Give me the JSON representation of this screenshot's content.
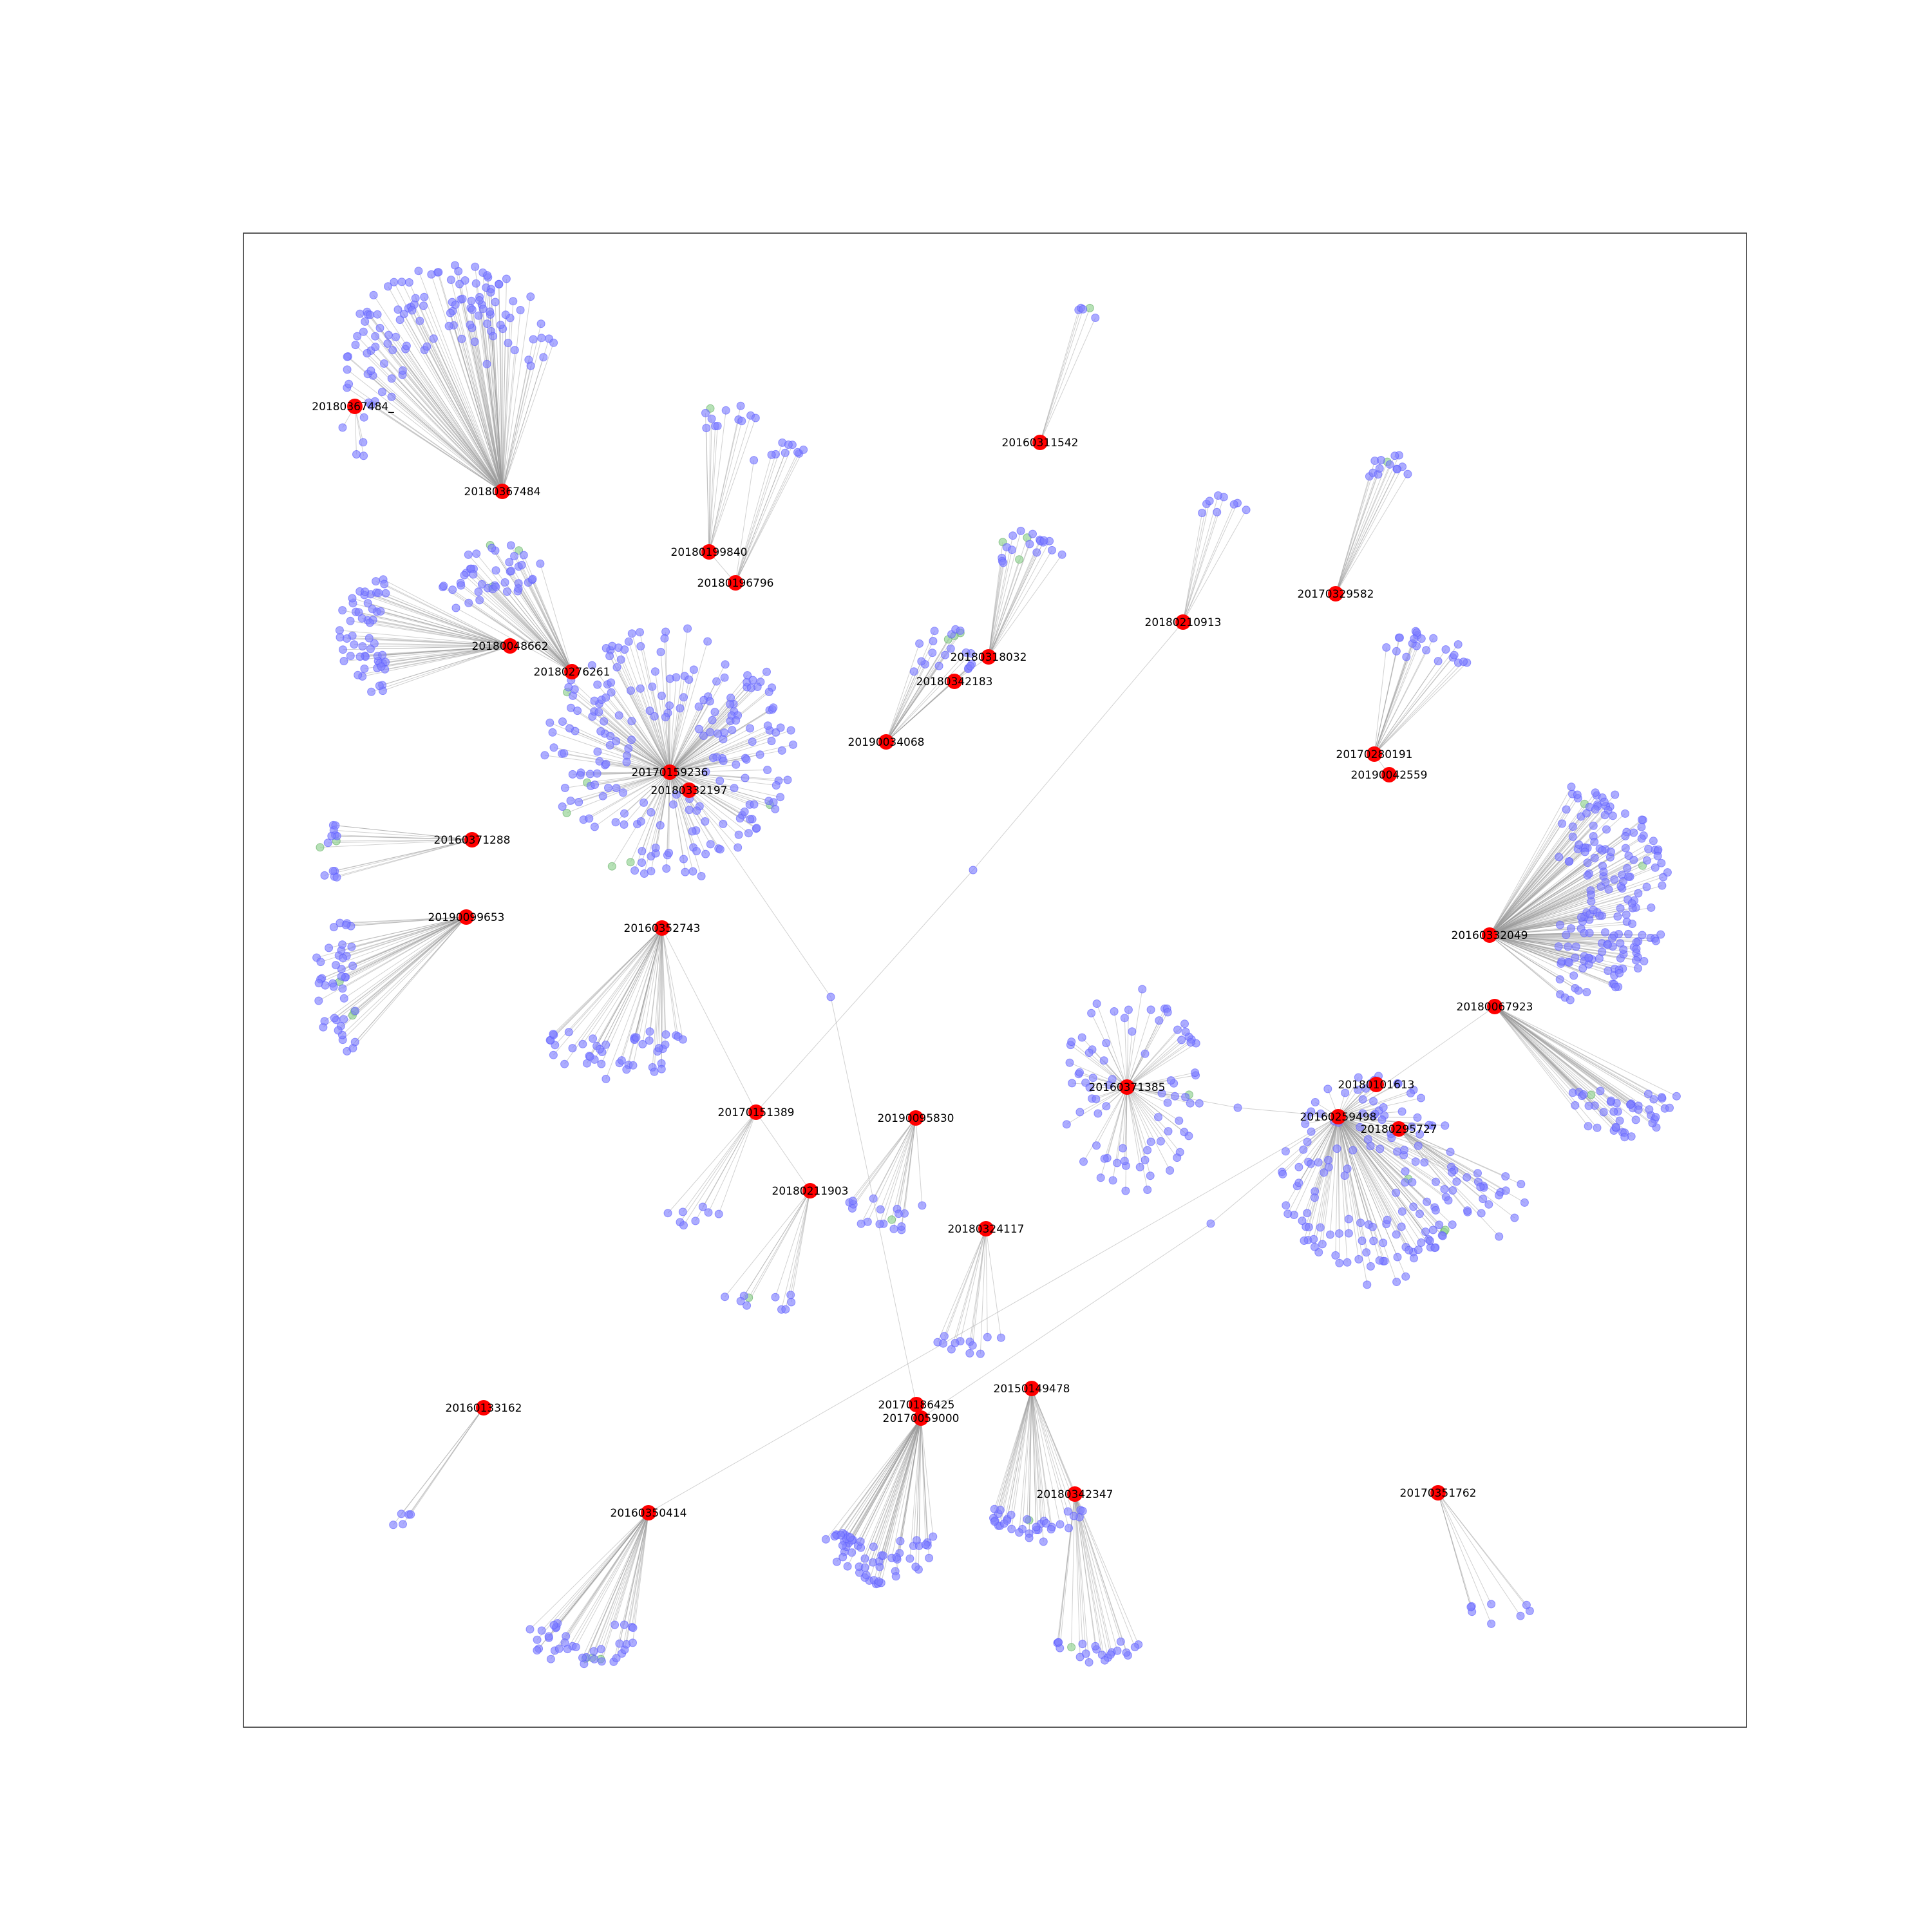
{
  "colors": {
    "hub": "#ff0000",
    "leaf": "#8080ff",
    "leaf_alt": "#8fd18f",
    "edge": "#9a9a9a",
    "frame": "#333333",
    "background": "#ffffff"
  },
  "hubs": [
    {
      "id": "h1",
      "label": "20180367484_"
    },
    {
      "id": "h2",
      "label": "20180367484"
    },
    {
      "id": "h3",
      "label": "20180199840"
    },
    {
      "id": "h4",
      "label": "20180196796"
    },
    {
      "id": "h5",
      "label": "20160311542"
    },
    {
      "id": "h6",
      "label": "20180048662"
    },
    {
      "id": "h7",
      "label": "20180276261"
    },
    {
      "id": "h8",
      "label": "20170159236"
    },
    {
      "id": "h9",
      "label": "20180332197"
    },
    {
      "id": "h10",
      "label": "20180318032"
    },
    {
      "id": "h11",
      "label": "20180342183"
    },
    {
      "id": "h12",
      "label": "20190034068"
    },
    {
      "id": "h13",
      "label": "20180210913"
    },
    {
      "id": "h14",
      "label": "20170329582"
    },
    {
      "id": "h15",
      "label": "20170280191"
    },
    {
      "id": "h16",
      "label": "20190042559"
    },
    {
      "id": "h17",
      "label": "20160371288"
    },
    {
      "id": "h18",
      "label": "20190099653"
    },
    {
      "id": "h19",
      "label": "20160352743"
    },
    {
      "id": "h20",
      "label": "20160332049"
    },
    {
      "id": "h21",
      "label": "20180067923"
    },
    {
      "id": "h22",
      "label": "20160371385"
    },
    {
      "id": "h23",
      "label": "20180101613"
    },
    {
      "id": "h24",
      "label": "20160259498"
    },
    {
      "id": "h25",
      "label": "20180295727"
    },
    {
      "id": "h26",
      "label": "20170151389"
    },
    {
      "id": "h27",
      "label": "20190095830"
    },
    {
      "id": "h28",
      "label": "20180211903"
    },
    {
      "id": "h29",
      "label": "20180324117"
    },
    {
      "id": "h30",
      "label": "20160133162"
    },
    {
      "id": "h31",
      "label": "20170186425"
    },
    {
      "id": "h32",
      "label": "20170059000"
    },
    {
      "id": "h33",
      "label": "20150149478"
    },
    {
      "id": "h34",
      "label": "20180342347"
    },
    {
      "id": "h35",
      "label": "20160350414"
    },
    {
      "id": "h36",
      "label": "20170351762"
    }
  ]
}
